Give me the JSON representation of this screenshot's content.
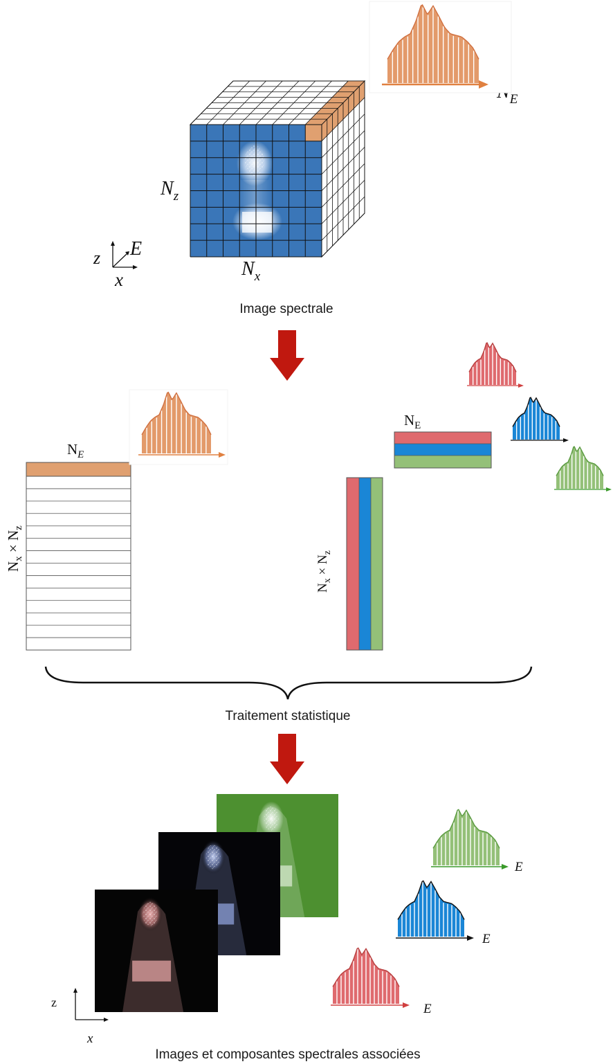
{
  "captions": {
    "spectral_image": "Image spectrale",
    "statistical_processing": "Traitement statistique",
    "images_and_components": "Images et composantes spectrales associées"
  },
  "cube": {
    "label_nz_base": "N",
    "label_nz_sub": "z",
    "label_nx_base": "N",
    "label_nx_sub": "x",
    "label_ne_base": "N",
    "label_ne_sub": "E",
    "axis_z": "z",
    "axis_e": "E",
    "axis_x": "x"
  },
  "unfolded_matrix": {
    "top_base": "N",
    "top_sub": "E",
    "side_base": "N",
    "side_sub1": "x",
    "side_times": " × N",
    "side_sub2": "z"
  },
  "factor_matrices": {
    "top_base": "N",
    "top_sub": "E",
    "side_base": "N",
    "side_sub1": "x",
    "side_times": " × N",
    "side_sub2": "z"
  },
  "output_axes": {
    "z": "z",
    "x": "x"
  },
  "output_spectra_axis": [
    "E",
    "E",
    "E"
  ],
  "colors": {
    "cube_face": "#3a76b8",
    "highlight": "#e0a070",
    "spectrum_orange": "#e39a6a",
    "red": "#df6a6e",
    "blue": "#1a86d6",
    "green": "#94c078",
    "arrow": "#c0180f",
    "map_green": "#4d9030"
  },
  "icons": [
    "down-arrow-icon",
    "curly-brace-icon",
    "spectrum-icon",
    "axes-icon"
  ]
}
